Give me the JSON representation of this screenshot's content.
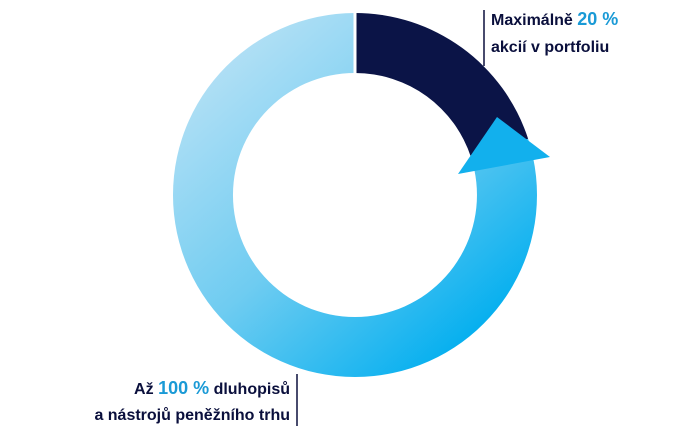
{
  "top_label": {
    "prefix": "Maximálně",
    "value": "20 %",
    "line2": "akcií v portfoliu"
  },
  "bottom_label": {
    "prefix": "Až",
    "value": "100 %",
    "suffix": "dluhopisů",
    "line2": "a nástrojů peněžního trhu"
  }
}
